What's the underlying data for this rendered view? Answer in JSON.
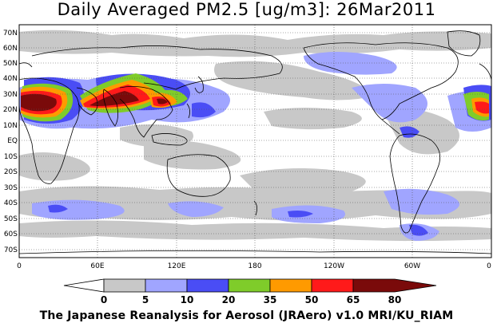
{
  "title": "Daily Averaged PM2.5 [ug/m3]: 26Mar2011",
  "footer": "The Japanese Reanalysis for Aerosol (JRAero) v1.0 MRI/KU_RIAM",
  "axes": {
    "lat_labels": [
      "70N",
      "60N",
      "50N",
      "40N",
      "30N",
      "20N",
      "10N",
      "EQ",
      "10S",
      "20S",
      "30S",
      "40S",
      "50S",
      "60S",
      "70S"
    ],
    "lon_labels": [
      "0",
      "60E",
      "120E",
      "180",
      "120W",
      "60W",
      "0"
    ]
  },
  "colorbar": {
    "levels": [
      "0",
      "5",
      "10",
      "20",
      "35",
      "50",
      "65",
      "80"
    ],
    "colors": [
      "#ffffff",
      "#c8c8c8",
      "#a0a5ff",
      "#4a4df5",
      "#7fcc2a",
      "#ff9a00",
      "#ff1a1a",
      "#7a0a0a"
    ]
  }
}
